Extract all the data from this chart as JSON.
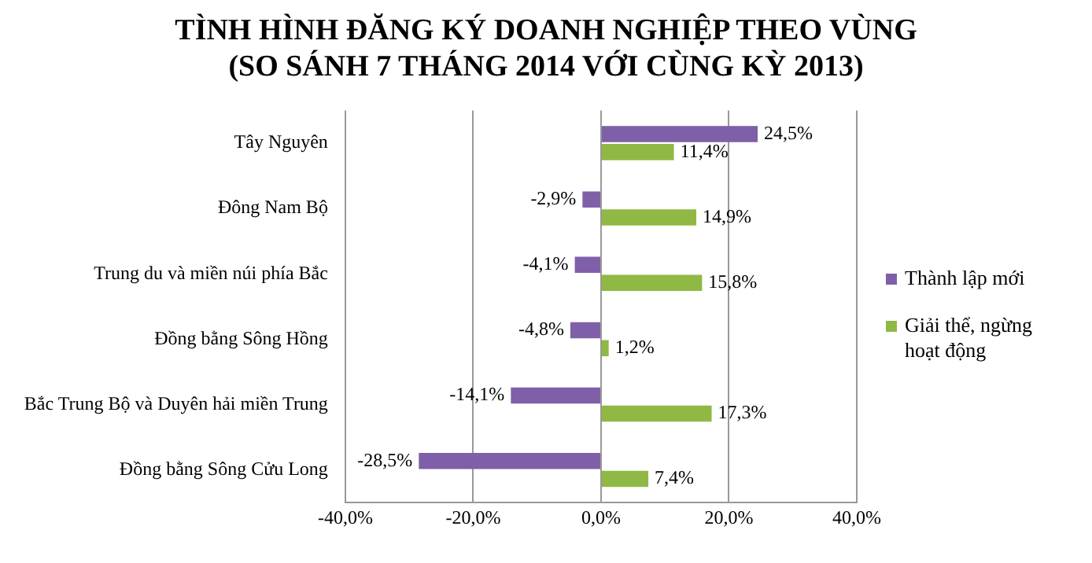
{
  "chart_data": {
    "type": "bar",
    "orientation": "horizontal",
    "title": "TÌNH HÌNH ĐĂNG KÝ DOANH NGHIỆP THEO VÙNG",
    "subtitle": "(SO SÁNH 7 THÁNG 2014 VỚI CÙNG KỲ 2013)",
    "categories": [
      "Tây Nguyên",
      "Đông Nam Bộ",
      "Trung du và miền núi phía Bắc",
      "Đồng bằng Sông Hồng",
      "Bắc Trung Bộ và Duyên hải miền Trung",
      "Đồng bằng Sông Cửu Long"
    ],
    "series": [
      {
        "name": "Thành lập mới",
        "color": "#7e5fa8",
        "values": [
          24.5,
          -2.9,
          -4.1,
          -4.8,
          -14.1,
          -28.5
        ],
        "value_labels": [
          "24,5%",
          "-2,9%",
          "-4,1%",
          "-4,8%",
          "-14,1%",
          "-28,5%"
        ]
      },
      {
        "name": "Giải thể, ngừng hoạt động",
        "color": "#8fb944",
        "values": [
          11.4,
          14.9,
          15.8,
          1.2,
          17.3,
          7.4
        ],
        "value_labels": [
          "11,4%",
          "14,9%",
          "15,8%",
          "1,2%",
          "17,3%",
          "7,4%"
        ]
      }
    ],
    "xlim": [
      -40,
      40
    ],
    "xticks": [
      {
        "value": -40,
        "label": "-40,0%"
      },
      {
        "value": -20,
        "label": "-20,0%"
      },
      {
        "value": 0,
        "label": "0,0%"
      },
      {
        "value": 20,
        "label": "20,0%"
      },
      {
        "value": 40,
        "label": "40,0%"
      }
    ],
    "grid": "x",
    "legend": "right"
  }
}
